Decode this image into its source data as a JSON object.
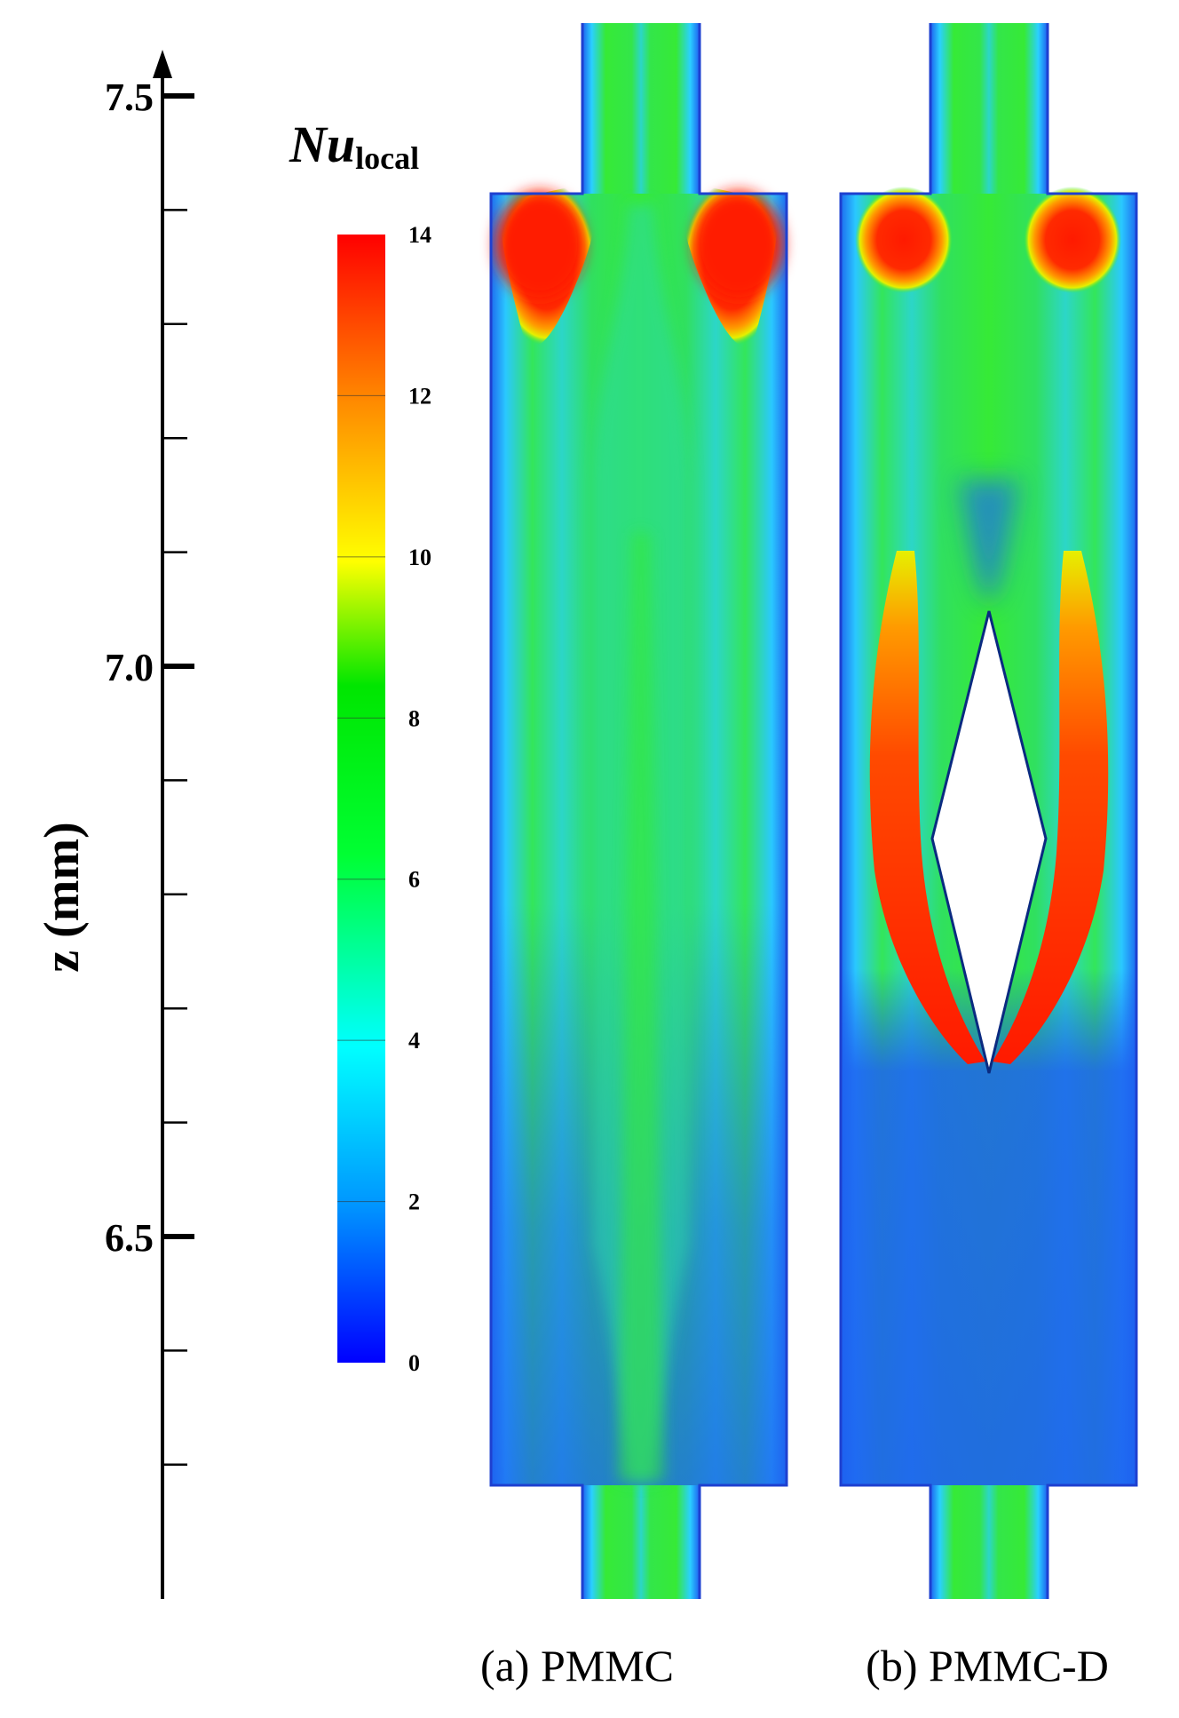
{
  "axis": {
    "title": "z (mm)",
    "major_ticks": [
      {
        "value": 7.5,
        "label": "7.5"
      },
      {
        "value": 7.0,
        "label": "7.0"
      },
      {
        "value": 6.5,
        "label": "6.5"
      }
    ],
    "minor_tick_values": [
      7.4,
      7.3,
      7.2,
      7.1,
      6.9,
      6.8,
      6.7,
      6.6,
      6.4,
      6.3
    ]
  },
  "colorbar": {
    "title_main": "Nu",
    "title_sub": "local",
    "min": 0,
    "max": 14,
    "ticks": [
      "14",
      "12",
      "10",
      "8",
      "6",
      "4",
      "2",
      "0"
    ],
    "colors": [
      "#0000ff",
      "#0096ff",
      "#00ffff",
      "#00ff00",
      "#00e600",
      "#ffff00",
      "#ff8c00",
      "#ff0000"
    ]
  },
  "panels": [
    {
      "id": "a",
      "caption": "(a) PMMC",
      "has_diamond": false
    },
    {
      "id": "b",
      "caption": "(b) PMMC-D",
      "has_diamond": true
    }
  ],
  "colors": {
    "low": "#1e50f0",
    "mid_low": "#26c8ff",
    "mid": "#33e833",
    "high": "#ff1a00",
    "hot": "#ff7a00"
  }
}
